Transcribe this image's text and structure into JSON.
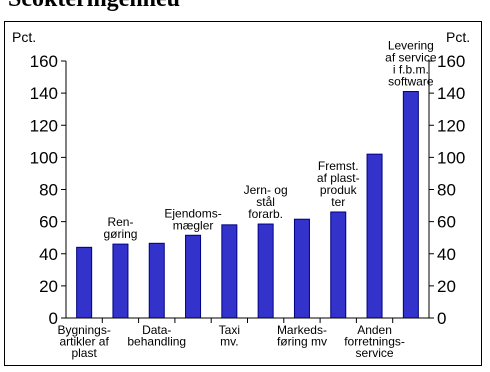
{
  "page": {
    "heading": "Scokteringenheu"
  },
  "chart_data": {
    "type": "bar",
    "ylabel_left": "Pct.",
    "ylabel_right": "Pct.",
    "ylim": [
      0,
      160
    ],
    "yticks": [
      0,
      20,
      40,
      60,
      80,
      100,
      120,
      140,
      160
    ],
    "bar_color": "#3333cc",
    "bar_edge_color": "#000080",
    "grid": false,
    "legend": "none",
    "values": [
      44,
      46,
      46.5,
      51.5,
      58,
      58.5,
      61.5,
      66,
      102,
      141
    ],
    "top_labels": [
      "",
      "Ren-\ngøring",
      "",
      "Ejendoms-\nmægler",
      "",
      "Jern- og\nstål\nforarb.",
      "",
      "Fremst.\naf plast-\nproduk\nter",
      "",
      "Levering\naf service\ni f.b.m.\nsoftware"
    ],
    "bottom_labels": [
      "Bygnings-\nartikler af\nplast",
      "",
      "Data-\nbehandling",
      "",
      "Taxi\nmv.",
      "",
      "Markeds-\nføring mv",
      "",
      "Anden\nforretnings-\nservice",
      ""
    ]
  }
}
